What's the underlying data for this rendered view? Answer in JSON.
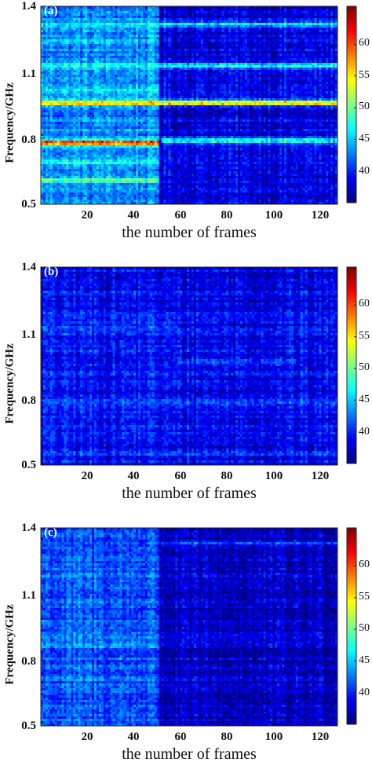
{
  "chart_data": [
    {
      "type": "heatmap",
      "panel_label": "(a)",
      "xlabel": "the number of frames",
      "ylabel": "Frequency/GHz",
      "xticks": [
        "20",
        "40",
        "60",
        "80",
        "100",
        "120"
      ],
      "yticks": [
        "1.4",
        "1.1",
        "0.8",
        "0.5"
      ],
      "xlim": [
        1,
        128
      ],
      "ylim": [
        0.5,
        1.4
      ],
      "colorbar": {
        "ticks": [
          "60",
          "55",
          "50",
          "45",
          "40"
        ],
        "range": [
          35,
          66
        ]
      },
      "frame_split": 52,
      "background_level": {
        "before_split": 43,
        "after_split": 38
      },
      "bands": [
        {
          "freq": 0.96,
          "level": 56,
          "frames": [
            1,
            128
          ]
        },
        {
          "freq": 0.78,
          "level": 61,
          "frames": [
            1,
            52
          ]
        },
        {
          "freq": 0.79,
          "level": 48,
          "frames": [
            53,
            128
          ]
        },
        {
          "freq": 1.13,
          "level": 48,
          "frames": [
            1,
            128
          ]
        },
        {
          "freq": 1.32,
          "level": 46,
          "frames": [
            1,
            128
          ]
        },
        {
          "freq": 0.61,
          "level": 50,
          "frames": [
            1,
            52
          ]
        },
        {
          "freq": 0.69,
          "level": 47,
          "frames": [
            1,
            52
          ]
        },
        {
          "freq": 1.02,
          "level": 46,
          "frames": [
            1,
            52
          ]
        },
        {
          "freq": 1.24,
          "level": 45,
          "frames": [
            1,
            52
          ]
        }
      ]
    },
    {
      "type": "heatmap",
      "panel_label": "(b)",
      "xlabel": "the number of frames",
      "ylabel": "Frequency/GHz",
      "xticks": [
        "20",
        "40",
        "60",
        "80",
        "100",
        "120"
      ],
      "yticks": [
        "1.4",
        "1.1",
        "0.8",
        "0.5"
      ],
      "xlim": [
        1,
        128
      ],
      "ylim": [
        0.5,
        1.4
      ],
      "colorbar": {
        "ticks": [
          "60",
          "55",
          "50",
          "45",
          "40"
        ],
        "range": [
          35,
          66
        ]
      },
      "frame_split": 52,
      "background_level": {
        "before_split": 39,
        "after_split": 38.5
      },
      "bands": [
        {
          "freq": 0.79,
          "level": 42,
          "frames": [
            1,
            128
          ]
        },
        {
          "freq": 0.97,
          "level": 42,
          "frames": [
            60,
            110
          ]
        },
        {
          "freq": 0.55,
          "level": 41,
          "frames": [
            1,
            128
          ]
        },
        {
          "freq": 1.13,
          "level": 41,
          "frames": [
            1,
            60
          ]
        }
      ]
    },
    {
      "type": "heatmap",
      "panel_label": "(c)",
      "xlabel": "the number of frames",
      "ylabel": "Frequency/GHz",
      "xticks": [
        "20",
        "40",
        "60",
        "80",
        "100",
        "120"
      ],
      "yticks": [
        "1.4",
        "1.1",
        "0.8",
        "0.5"
      ],
      "xlim": [
        1,
        128
      ],
      "ylim": [
        0.5,
        1.4
      ],
      "colorbar": {
        "ticks": [
          "60",
          "55",
          "50",
          "45",
          "40"
        ],
        "range": [
          35,
          66
        ]
      },
      "frame_split": 52,
      "background_level": {
        "before_split": 41.5,
        "after_split": 37
      },
      "bands": [
        {
          "freq": 0.86,
          "level": 43,
          "frames": [
            1,
            52
          ]
        },
        {
          "freq": 1.33,
          "level": 41,
          "frames": [
            53,
            128
          ]
        }
      ]
    }
  ]
}
